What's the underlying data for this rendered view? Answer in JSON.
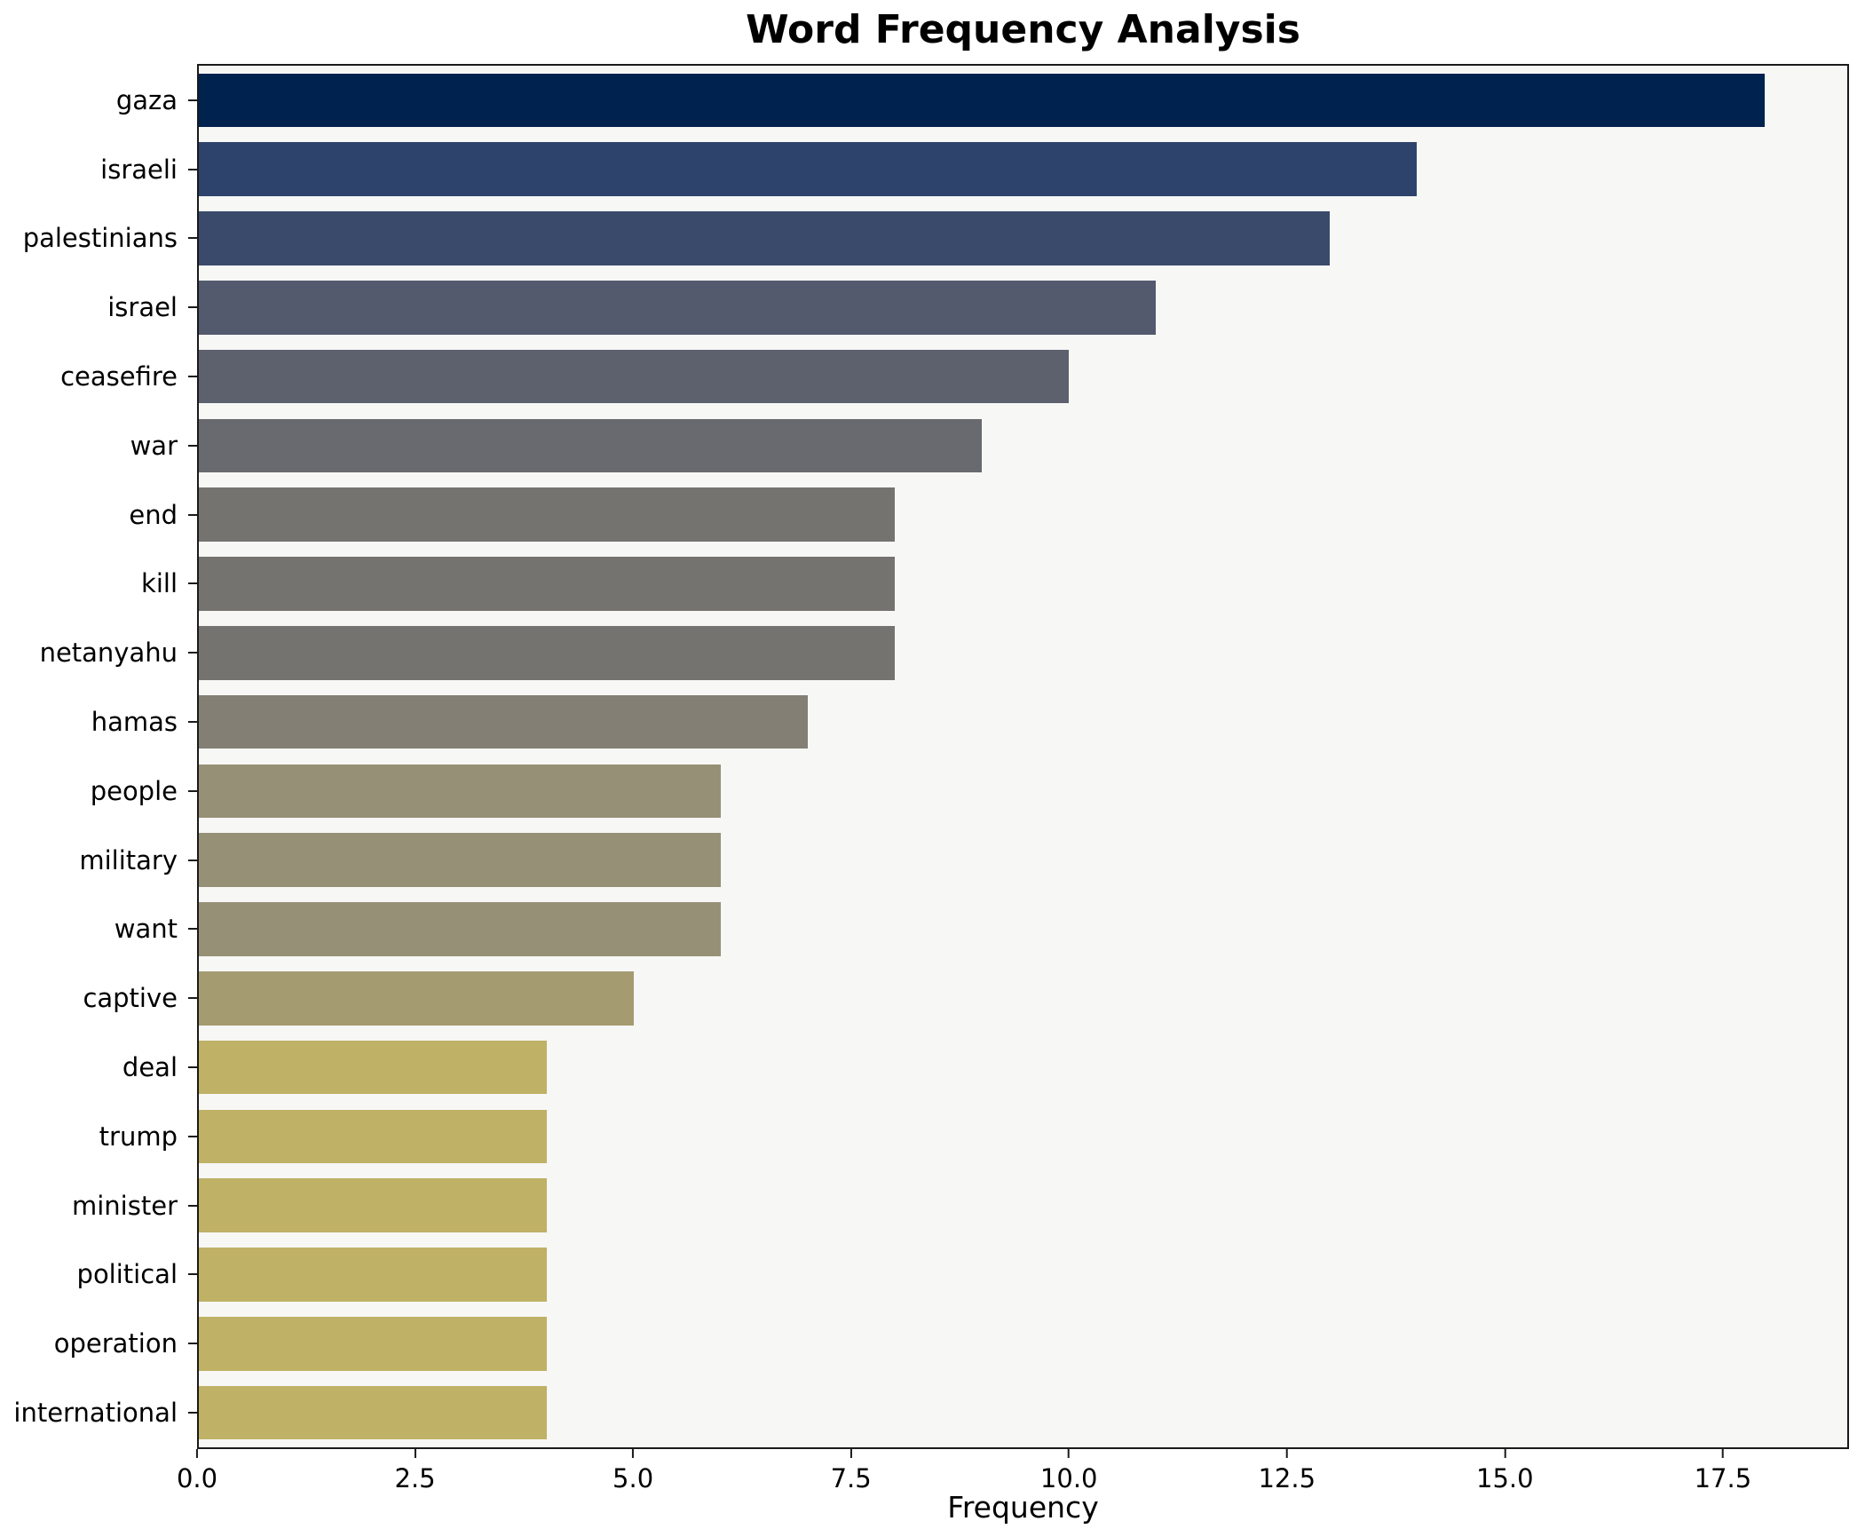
{
  "title": "Word Frequency Analysis",
  "chart_data": {
    "type": "bar",
    "orientation": "horizontal",
    "title": "Word Frequency Analysis",
    "xlabel": "Frequency",
    "ylabel": "",
    "xlim": [
      0,
      18.947
    ],
    "x_ticks": [
      0,
      2.5,
      5,
      7.5,
      10,
      12.5,
      15,
      17.5
    ],
    "x_tick_labels": [
      "0.0",
      "2.5",
      "5.0",
      "7.5",
      "10.0",
      "12.5",
      "15.0",
      "17.5"
    ],
    "grid": false,
    "legend": null,
    "plot_background": "#f7f7f6",
    "spine_color": "#1a1a1a",
    "colormap": "cividis",
    "categories": [
      "gaza",
      "israeli",
      "palestinians",
      "israel",
      "ceasefire",
      "war",
      "end",
      "kill",
      "netanyahu",
      "hamas",
      "people",
      "military",
      "want",
      "captive",
      "deal",
      "trump",
      "minister",
      "political",
      "operation",
      "international"
    ],
    "values": [
      18,
      14,
      13,
      11,
      10,
      9,
      8,
      8,
      8,
      7,
      6,
      6,
      6,
      5,
      4,
      4,
      4,
      4,
      4,
      4
    ],
    "bar_colors": [
      "#00224e",
      "#2e436c",
      "#3a4a6b",
      "#535a6d",
      "#5d616e",
      "#696a6f",
      "#757370",
      "#757370",
      "#757370",
      "#847f74",
      "#969076",
      "#969076",
      "#969076",
      "#a49b71",
      "#bfb166",
      "#bfb166",
      "#bfb166",
      "#bfb166",
      "#bfb166",
      "#bfb166"
    ]
  }
}
